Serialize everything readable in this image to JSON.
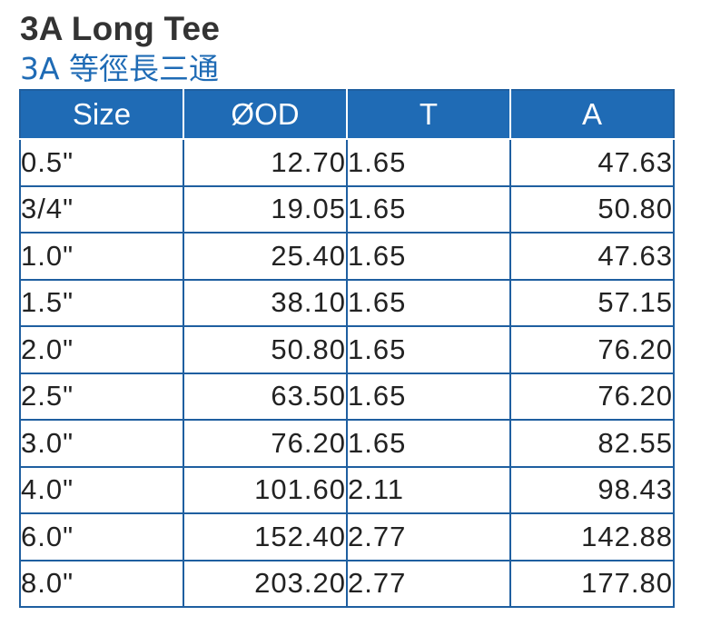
{
  "title_en": "3A Long Tee",
  "title_zh": "3A 等徑長三通",
  "table": {
    "headers": [
      "Size",
      "ØOD",
      "T",
      "A"
    ],
    "rows": [
      [
        "0.5\"",
        "12.70",
        "1.65",
        "47.63"
      ],
      [
        "3/4\"",
        "19.05",
        "1.65",
        "50.80"
      ],
      [
        "1.0\"",
        "25.40",
        "1.65",
        "47.63"
      ],
      [
        "1.5\"",
        "38.10",
        "1.65",
        "57.15"
      ],
      [
        "2.0\"",
        "50.80",
        "1.65",
        "76.20"
      ],
      [
        "2.5\"",
        "63.50",
        "1.65",
        "76.20"
      ],
      [
        "3.0\"",
        "76.20",
        "1.65",
        "82.55"
      ],
      [
        "4.0\"",
        "101.60",
        "2.11",
        "98.43"
      ],
      [
        "6.0\"",
        "152.40",
        "2.77",
        "142.88"
      ],
      [
        "8.0\"",
        "203.20",
        "2.77",
        "177.80"
      ]
    ]
  },
  "colors": {
    "header_bg": "#1f6bb5",
    "title_zh": "#1f6bb5",
    "title_en": "#333333"
  }
}
